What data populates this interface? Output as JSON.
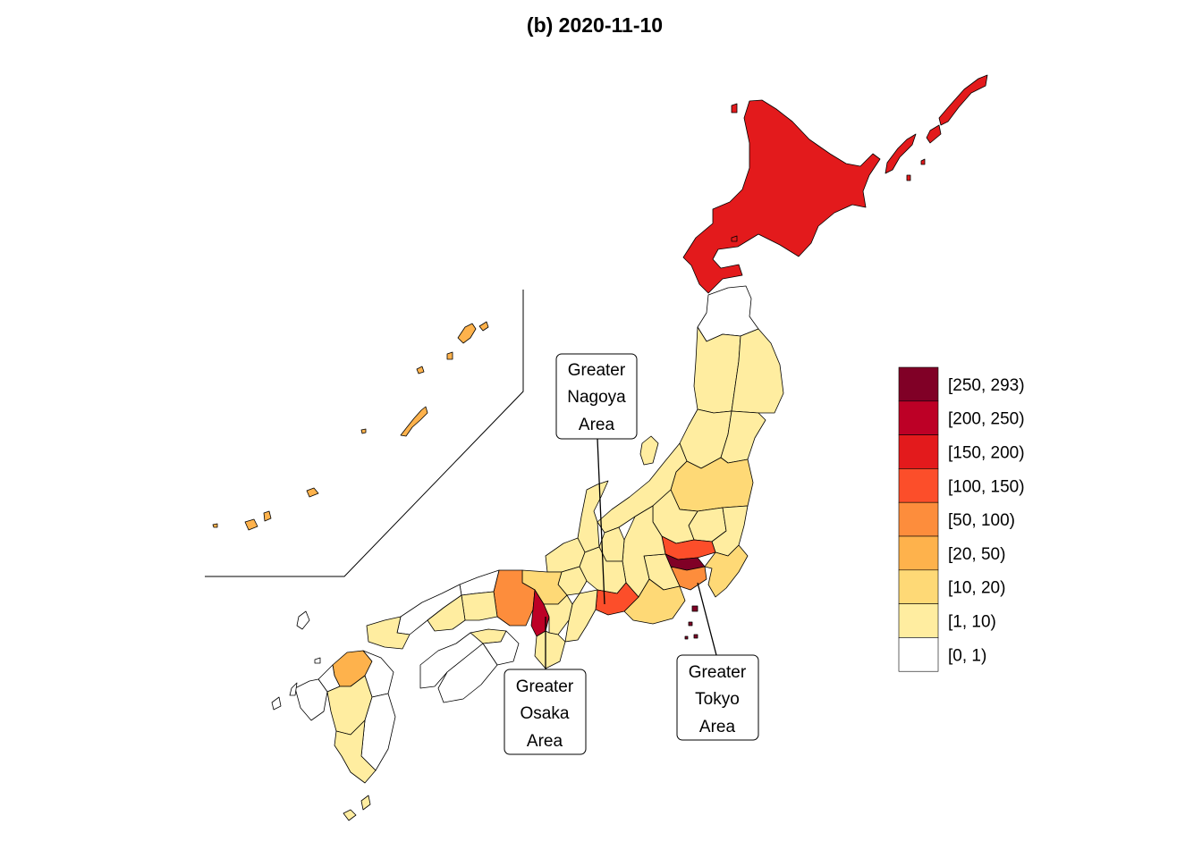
{
  "title": "(b) 2020-11-10",
  "legend": {
    "items": [
      {
        "label": "[250, 293)",
        "color": "#800026"
      },
      {
        "label": "[200, 250)",
        "color": "#BD0026"
      },
      {
        "label": "[150, 200)",
        "color": "#E31A1C"
      },
      {
        "label": "[100, 150)",
        "color": "#FC4E2A"
      },
      {
        "label": "[50, 100)",
        "color": "#FD8D3C"
      },
      {
        "label": "[20, 50)",
        "color": "#FEB24C"
      },
      {
        "label": "[10, 20)",
        "color": "#FED976"
      },
      {
        "label": "[1, 10)",
        "color": "#FFEDA0"
      },
      {
        "label": "[0, 1)",
        "color": "#FFFFFF"
      }
    ]
  },
  "callouts": {
    "nagoya": {
      "lines": [
        "Greater",
        "Nagoya",
        "Area"
      ]
    },
    "osaka": {
      "lines": [
        "Greater",
        "Osaka",
        "Area"
      ]
    },
    "tokyo": {
      "lines": [
        "Greater",
        "Tokyo",
        "Area"
      ]
    }
  },
  "regions": {
    "hokkaido": "#E31A1C",
    "aomori": "#FFFFFF",
    "iwate": "#FFEDA0",
    "akita": "#FFEDA0",
    "miyagi": "#FFEDA0",
    "yamagata": "#FFEDA0",
    "fukushima": "#FED976",
    "niigata": "#FFEDA0",
    "tochigi": "#FFEDA0",
    "ibaraki": "#FFEDA0",
    "gunma": "#FFEDA0",
    "saitama": "#FC4E2A",
    "tokyo": "#800026",
    "kanagawa": "#FD8D3C",
    "chiba": "#FED976",
    "yamanashi": "#FFEDA0",
    "nagano": "#FFEDA0",
    "shizuoka": "#FED976",
    "toyama": "#FFEDA0",
    "ishikawa": "#FFEDA0",
    "fukui": "#FFEDA0",
    "gifu": "#FFEDA0",
    "aichi": "#FC4E2A",
    "mie": "#FFEDA0",
    "shiga": "#FFEDA0",
    "kyoto": "#FED976",
    "osaka": "#BD0026",
    "hyogo": "#FD8D3C",
    "nara": "#FFEDA0",
    "wakayama": "#FFEDA0",
    "tottori": "#FFFFFF",
    "shimane": "#FFFFFF",
    "okayama": "#FFEDA0",
    "hiroshima": "#FFEDA0",
    "yamaguchi": "#FFEDA0",
    "tokushima": "#FFFFFF",
    "kagawa": "#FFEDA0",
    "ehime": "#FFFFFF",
    "kochi": "#FFFFFF",
    "fukuoka": "#FEB24C",
    "saga": "#FFFFFF",
    "nagasaki": "#FFFFFF",
    "kumamoto": "#FFEDA0",
    "oita": "#FFFFFF",
    "miyazaki": "#FFFFFF",
    "kagoshima": "#FFEDA0",
    "okinawa": "#FEB24C",
    "sado": "#FFEDA0",
    "izu_islands": "#800026"
  }
}
